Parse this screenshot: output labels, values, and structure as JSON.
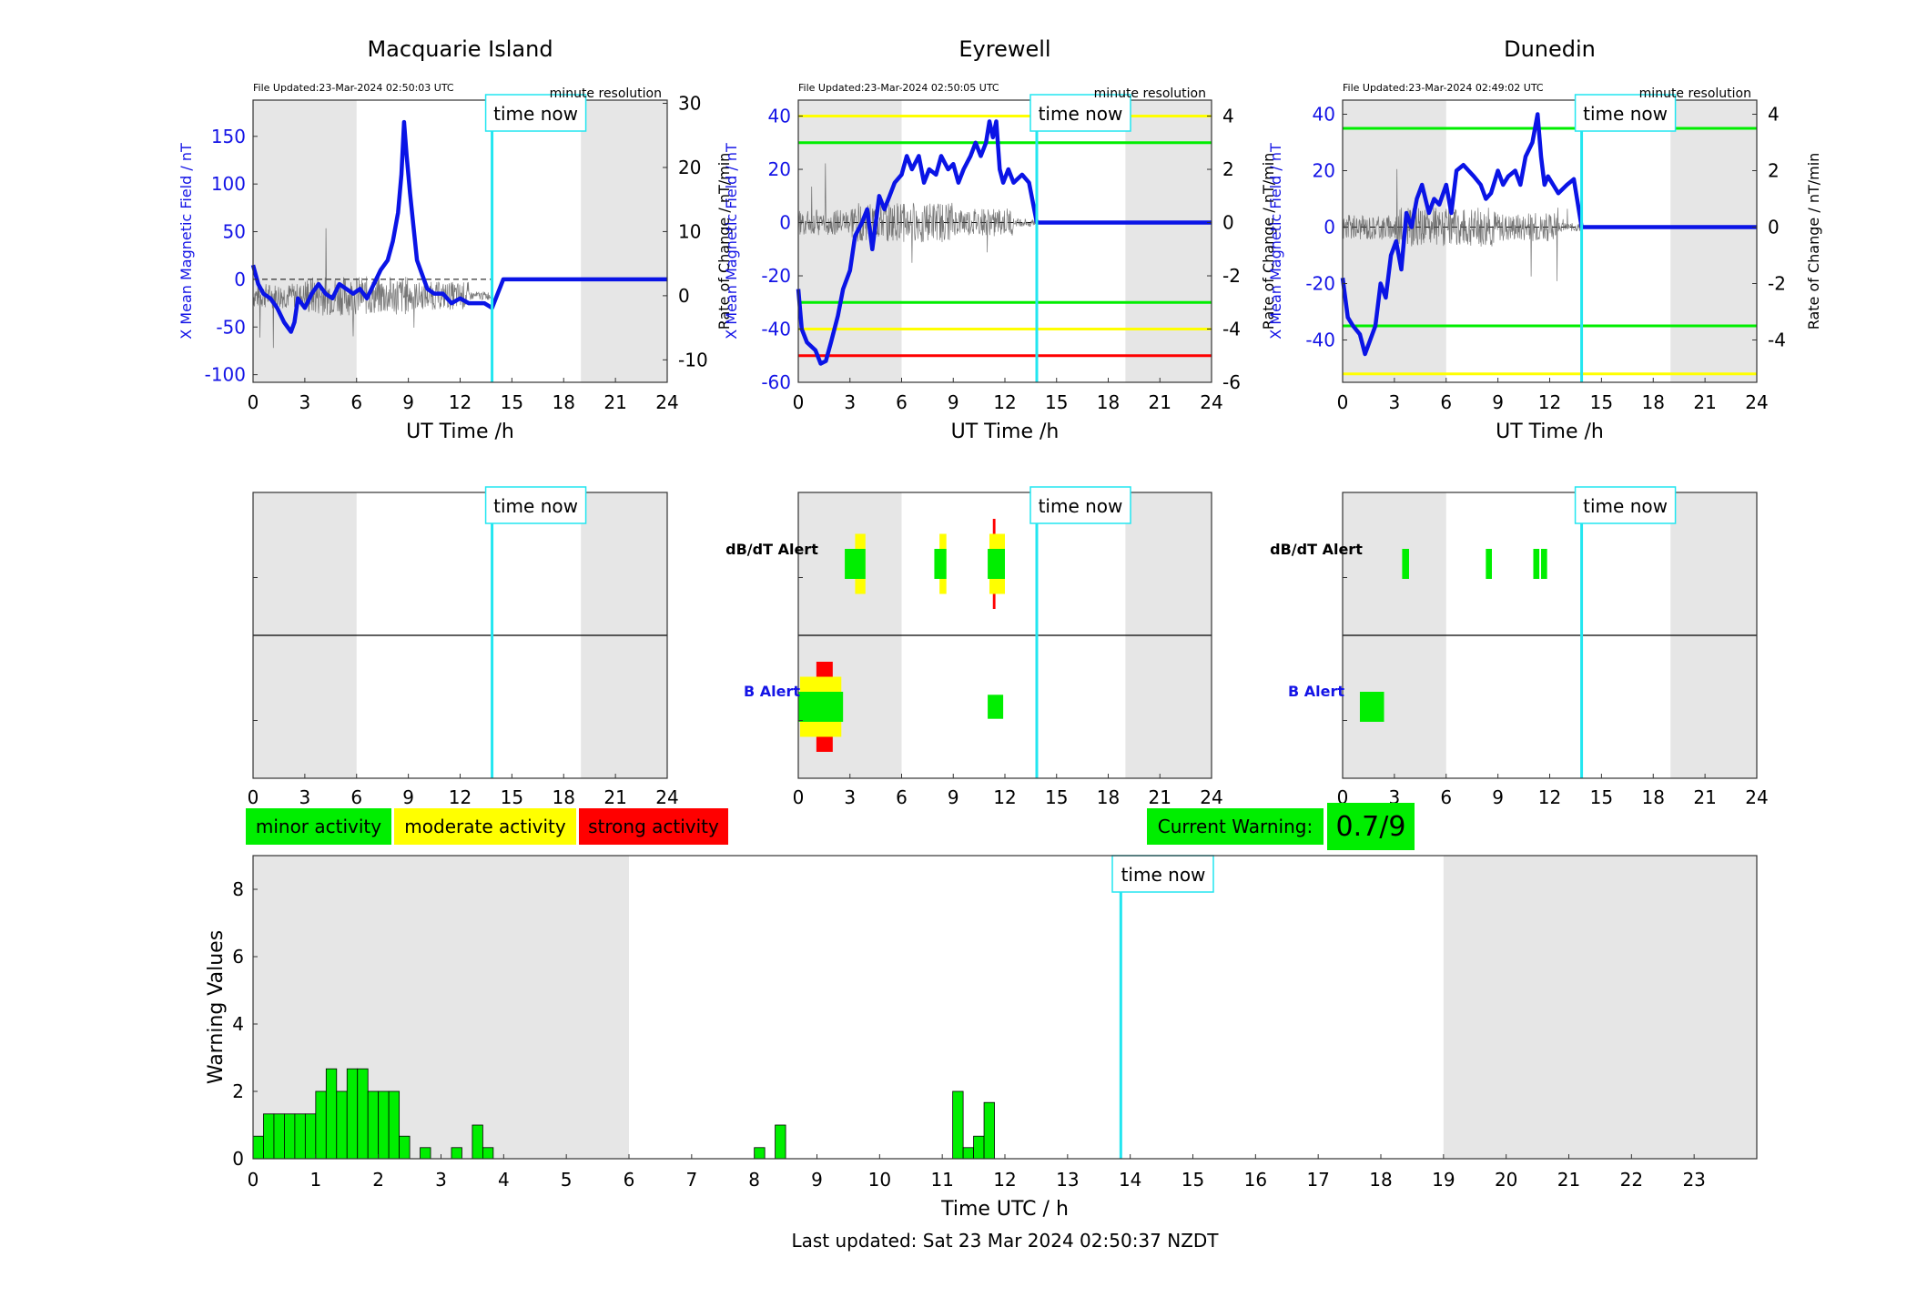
{
  "colors": {
    "shade": "#e6e6e6",
    "now_line": "#22e6f0",
    "mag_line": "#0a14e6",
    "roc_line": "#555555",
    "axis_blue": "#1414e6",
    "minor": "#00ee00",
    "moderate": "#ffff00",
    "strong": "#ff0000"
  },
  "legend": {
    "minor": "minor activity",
    "moderate": "moderate activity",
    "strong": "strong activity"
  },
  "current_warning": {
    "label": "Current Warning:",
    "value": "0.7/9"
  },
  "footer": "Last updated: Sat 23 Mar 2024 02:50:37 NZDT",
  "chart_data": [
    {
      "type": "line",
      "title": "Macquarie Island",
      "file_updated": "File Updated:23-Mar-2024 02:50:03 UTC",
      "resolution": "minute resolution",
      "now_label": "time now",
      "now_hour": 13.85,
      "xlabel": "UT Time /h",
      "ylabel_left": "X Mean Magnetic Field / nT",
      "ylabel_right": "Rate of Change / nT/min",
      "xlim": [
        0,
        24
      ],
      "xticks": [
        0,
        3,
        6,
        9,
        12,
        15,
        18,
        21,
        24
      ],
      "ylim_left": [
        -108,
        188
      ],
      "yticks_left": [
        -100,
        -50,
        0,
        50,
        100,
        150
      ],
      "ylim_right": [
        -13.5,
        30.5
      ],
      "yticks_right": [
        -10,
        0,
        10,
        20,
        30
      ],
      "shade_hours": [
        [
          0,
          6
        ],
        [
          19,
          24
        ]
      ],
      "thresholds": [],
      "series": [
        {
          "x": [
            0,
            0.3,
            0.6,
            1,
            1.4,
            1.8,
            2.2,
            2.4,
            2.6,
            3,
            3.4,
            3.8,
            4.2,
            4.6,
            5,
            5.4,
            5.8,
            6.2,
            6.6,
            7,
            7.4,
            7.8,
            8.1,
            8.4,
            8.6,
            8.75,
            8.9,
            9.1,
            9.3,
            9.5,
            9.8,
            10.1,
            10.5,
            11,
            11.5,
            12,
            12.5,
            13,
            13.4,
            13.85,
            14.5,
            18,
            21,
            24
          ],
          "y": [
            15,
            -5,
            -15,
            -20,
            -30,
            -45,
            -55,
            -45,
            -20,
            -30,
            -15,
            -5,
            -15,
            -20,
            -5,
            -10,
            -15,
            -10,
            -20,
            -5,
            10,
            20,
            40,
            70,
            110,
            165,
            130,
            90,
            55,
            20,
            5,
            -10,
            -15,
            -15,
            -25,
            -20,
            -25,
            -25,
            -25,
            -30,
            0,
            0,
            0,
            0
          ]
        }
      ],
      "alert_bars": {
        "dbdt": [],
        "b": []
      }
    },
    {
      "type": "line",
      "title": "Eyrewell",
      "file_updated": "File Updated:23-Mar-2024 02:50:05 UTC",
      "resolution": "minute resolution",
      "now_label": "time now",
      "now_hour": 13.85,
      "xlabel": "UT Time /h",
      "ylabel_left": "X Mean Magnetic Field / nT",
      "ylabel_right": "Rate of Change / nT/min",
      "xlim": [
        0,
        24
      ],
      "xticks": [
        0,
        3,
        6,
        9,
        12,
        15,
        18,
        21,
        24
      ],
      "ylim_left": [
        -60,
        46
      ],
      "yticks_left": [
        -60,
        -40,
        -20,
        0,
        20,
        40
      ],
      "ylim_right": [
        -6,
        4.6
      ],
      "yticks_right": [
        -6,
        -4,
        -2,
        0,
        2,
        4
      ],
      "shade_hours": [
        [
          0,
          6
        ],
        [
          19,
          24
        ]
      ],
      "thresholds": [
        {
          "value": 40,
          "color": "#ffff00"
        },
        {
          "value": 30,
          "color": "#00ee00"
        },
        {
          "value": -30,
          "color": "#00ee00"
        },
        {
          "value": -40,
          "color": "#ffff00"
        },
        {
          "value": -50,
          "color": "#ff0000"
        }
      ],
      "series": [
        {
          "x": [
            0,
            0.2,
            0.5,
            1,
            1.3,
            1.6,
            1.9,
            2.3,
            2.6,
            3,
            3.3,
            3.7,
            4,
            4.3,
            4.7,
            5,
            5.3,
            5.6,
            6,
            6.3,
            6.6,
            7,
            7.3,
            7.6,
            8,
            8.3,
            8.7,
            9,
            9.3,
            9.6,
            10,
            10.3,
            10.6,
            10.9,
            11.1,
            11.3,
            11.5,
            11.7,
            11.9,
            12.2,
            12.5,
            13,
            13.4,
            13.85,
            14.5,
            18,
            21,
            24
          ],
          "y": [
            -25,
            -40,
            -45,
            -48,
            -53,
            -52,
            -45,
            -35,
            -25,
            -18,
            -5,
            0,
            5,
            -10,
            10,
            5,
            10,
            15,
            18,
            25,
            20,
            25,
            15,
            20,
            18,
            25,
            20,
            22,
            15,
            20,
            25,
            30,
            25,
            30,
            38,
            32,
            38,
            20,
            15,
            20,
            15,
            18,
            15,
            0,
            0,
            0,
            0,
            0
          ]
        }
      ],
      "alert_bars": {
        "dbdt": [
          {
            "x0": 3.3,
            "x1": 3.9,
            "lo": -1,
            "hi": 1,
            "level": "moderate"
          },
          {
            "x0": 2.7,
            "x1": 3.9,
            "lo": -0.5,
            "hi": 0.5,
            "level": "minor"
          },
          {
            "x0": 8.2,
            "x1": 8.6,
            "lo": -1,
            "hi": 1,
            "level": "moderate"
          },
          {
            "x0": 7.9,
            "x1": 8.6,
            "lo": -0.5,
            "hi": 0.5,
            "level": "minor"
          },
          {
            "x0": 11.3,
            "x1": 11.45,
            "lo": -1.5,
            "hi": 1.5,
            "level": "strong"
          },
          {
            "x0": 11.1,
            "x1": 12,
            "lo": -1,
            "hi": 1,
            "level": "moderate"
          },
          {
            "x0": 11,
            "x1": 12,
            "lo": -0.5,
            "hi": 0.5,
            "level": "minor"
          }
        ],
        "b": [
          {
            "x0": 1.05,
            "x1": 2,
            "lo": -1.5,
            "hi": 1.5,
            "level": "strong"
          },
          {
            "x0": 0.1,
            "x1": 2.5,
            "lo": -1,
            "hi": 1,
            "level": "moderate"
          },
          {
            "x0": 0,
            "x1": 2.6,
            "lo": -0.5,
            "hi": 0.5,
            "level": "minor"
          },
          {
            "x0": 11,
            "x1": 11.9,
            "lo": -0.4,
            "hi": 0.4,
            "level": "minor"
          }
        ]
      }
    },
    {
      "type": "line",
      "title": "Dunedin",
      "file_updated": "File Updated:23-Mar-2024 02:49:02 UTC",
      "resolution": "minute resolution",
      "now_label": "time now",
      "now_hour": 13.85,
      "xlabel": "UT Time /h",
      "ylabel_left": "X Mean Magnetic Field / nT",
      "ylabel_right": "Rate of Change / nT/min",
      "xlim": [
        0,
        24
      ],
      "xticks": [
        0,
        3,
        6,
        9,
        12,
        15,
        18,
        21,
        24
      ],
      "ylim_left": [
        -55,
        45
      ],
      "yticks_left": [
        -40,
        -20,
        0,
        20,
        40
      ],
      "ylim_right": [
        -5.5,
        4.5
      ],
      "yticks_right": [
        -4,
        -2,
        0,
        2,
        4
      ],
      "shade_hours": [
        [
          0,
          6
        ],
        [
          19,
          24
        ]
      ],
      "thresholds": [
        {
          "value": 35,
          "color": "#00ee00"
        },
        {
          "value": -35,
          "color": "#00ee00"
        },
        {
          "value": -52,
          "color": "#ffff00"
        }
      ],
      "series": [
        {
          "x": [
            0,
            0.3,
            0.6,
            1,
            1.3,
            1.6,
            1.9,
            2.2,
            2.5,
            2.8,
            3.1,
            3.4,
            3.7,
            4,
            4.3,
            4.6,
            5,
            5.3,
            5.6,
            6,
            6.3,
            6.6,
            7,
            7.3,
            7.6,
            8,
            8.3,
            8.6,
            9,
            9.3,
            9.6,
            10,
            10.3,
            10.6,
            11,
            11.3,
            11.5,
            11.7,
            11.9,
            12.2,
            12.5,
            13,
            13.4,
            13.85,
            14.5,
            18,
            21,
            24
          ],
          "y": [
            -18,
            -32,
            -35,
            -38,
            -45,
            -40,
            -35,
            -20,
            -25,
            -10,
            -5,
            -15,
            5,
            0,
            10,
            15,
            5,
            10,
            8,
            15,
            5,
            20,
            22,
            20,
            18,
            15,
            10,
            12,
            20,
            15,
            18,
            20,
            15,
            25,
            30,
            40,
            25,
            15,
            18,
            15,
            12,
            15,
            17,
            0,
            0,
            0,
            0,
            0
          ]
        }
      ],
      "alert_bars": {
        "dbdt": [
          {
            "x0": 3.45,
            "x1": 3.85,
            "lo": -0.5,
            "hi": 0.5,
            "level": "minor"
          },
          {
            "x0": 8.3,
            "x1": 8.65,
            "lo": -0.5,
            "hi": 0.5,
            "level": "minor"
          },
          {
            "x0": 11.05,
            "x1": 11.4,
            "lo": -0.5,
            "hi": 0.5,
            "level": "minor"
          },
          {
            "x0": 11.5,
            "x1": 11.85,
            "lo": -0.5,
            "hi": 0.5,
            "level": "minor"
          }
        ],
        "b": [
          {
            "x0": 1,
            "x1": 2.4,
            "lo": -0.5,
            "hi": 0.5,
            "level": "minor"
          }
        ]
      }
    },
    {
      "type": "bar",
      "xlabel": "Time UTC / h",
      "ylabel": "Warning Values",
      "now_label": "time now",
      "now_hour": 13.85,
      "xlim": [
        0,
        24
      ],
      "xticks": [
        0,
        1,
        2,
        3,
        4,
        5,
        6,
        7,
        8,
        9,
        10,
        11,
        12,
        13,
        14,
        15,
        16,
        17,
        18,
        19,
        20,
        21,
        22,
        23
      ],
      "ylim": [
        0,
        9
      ],
      "yticks": [
        0,
        2,
        4,
        6,
        8
      ],
      "shade_hours": [
        [
          0,
          6
        ],
        [
          19,
          24
        ]
      ],
      "bar_width_hours": 0.1667,
      "x": [
        0,
        0.1667,
        0.3333,
        0.5,
        0.6667,
        0.8333,
        1,
        1.1667,
        1.3333,
        1.5,
        1.6667,
        1.8333,
        2,
        2.1667,
        2.3333,
        2.6667,
        3.1667,
        3.5,
        3.6667,
        8,
        8.3333,
        11.1667,
        11.3333,
        11.5,
        11.6667
      ],
      "values": [
        0.67,
        1.33,
        1.33,
        1.33,
        1.33,
        1.33,
        2,
        2.67,
        2,
        2.67,
        2.67,
        2,
        2,
        2,
        0.67,
        0.33,
        0.33,
        1,
        0.33,
        0.33,
        1,
        2,
        0.33,
        0.67,
        1.67
      ]
    }
  ]
}
